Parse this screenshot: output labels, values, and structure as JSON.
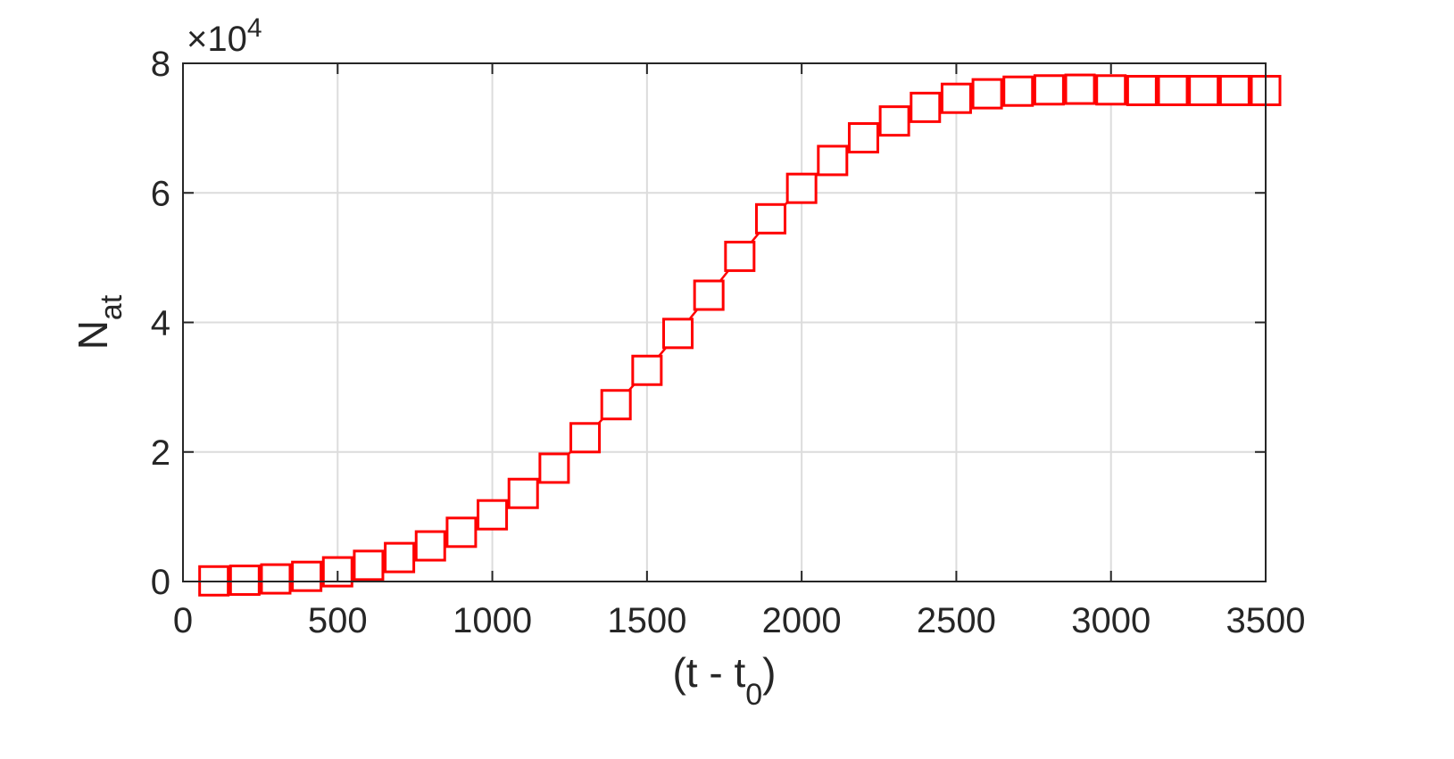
{
  "chart_data": {
    "type": "line",
    "title": "",
    "xlabel": "(t - t",
    "xlabel_subscript": "0",
    "xlabel_suffix": ")",
    "ylabel": "N",
    "ylabel_subscript": "at",
    "y_exponent_prefix": "×10",
    "y_exponent_power": "4",
    "y_multiplier": 10000,
    "xlim": [
      0,
      3500
    ],
    "ylim": [
      0,
      80000
    ],
    "xticks": [
      0,
      500,
      1000,
      1500,
      2000,
      2500,
      3000,
      3500
    ],
    "yticks": [
      0,
      20000,
      40000,
      60000,
      80000
    ],
    "xtick_labels": [
      "0",
      "500",
      "1000",
      "1500",
      "2000",
      "2500",
      "3000",
      "3500"
    ],
    "ytick_labels": [
      "0",
      "2",
      "4",
      "6",
      "8"
    ],
    "grid": true,
    "marker": "square",
    "series": [
      {
        "color": "#ff0000",
        "x": [
          100,
          200,
          300,
          400,
          500,
          600,
          700,
          800,
          900,
          1000,
          1100,
          1200,
          1300,
          1400,
          1500,
          1600,
          1700,
          1800,
          1900,
          2000,
          2100,
          2200,
          2300,
          2400,
          2500,
          2600,
          2700,
          2800,
          2900,
          3000,
          3100,
          3200,
          3300,
          3400,
          3500
        ],
        "y": [
          100,
          200,
          400,
          800,
          1500,
          2500,
          3700,
          5500,
          7600,
          10300,
          13600,
          17500,
          22200,
          27300,
          32600,
          38300,
          44200,
          50200,
          56000,
          60700,
          65000,
          68500,
          71100,
          73200,
          74600,
          75300,
          75700,
          75900,
          76000,
          75900,
          75800,
          75800,
          75800,
          75800,
          75800
        ]
      }
    ]
  }
}
